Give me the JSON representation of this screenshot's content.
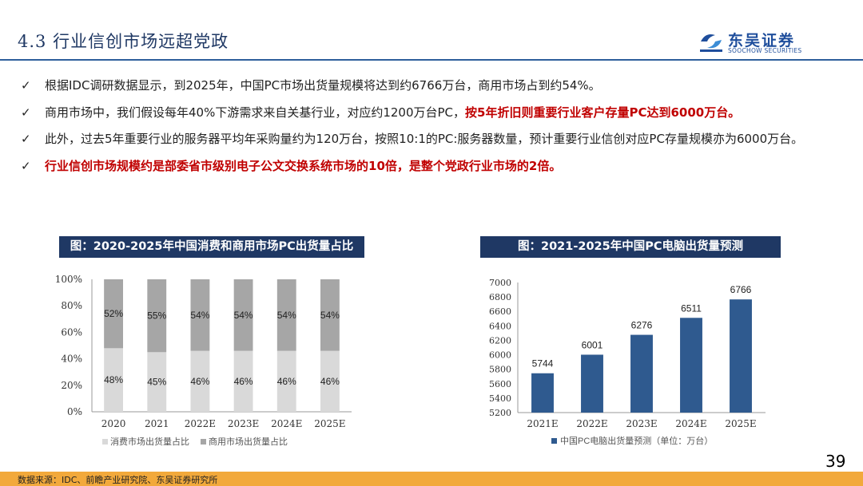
{
  "header": {
    "title": "4.3 行业信创市场远超党政",
    "logo_text": "东吴证券",
    "logo_sub": "SOOCHOW SECURITIES"
  },
  "bullets": [
    {
      "check": "✓",
      "parts": [
        {
          "text": "根据IDC调研数据显示，到2025年，中国PC市场出货量规模将达到约6766万台，商用市场占到约54%。",
          "style": "normal"
        }
      ]
    },
    {
      "check": "✓",
      "parts": [
        {
          "text": "商用市场中，我们假设每年40%下游需求来自关基行业，对应约1200万台PC，",
          "style": "normal"
        },
        {
          "text": "按5年折旧则重要行业客户存量PC达到6000万台。",
          "style": "red"
        }
      ]
    },
    {
      "check": "✓",
      "parts": [
        {
          "text": "此外，过去5年重要行业的服务器平均年采购量约为120万台，按照10:1的PC:服务器数量，预计重要行业信创对应PC存量规模亦为6000万台。",
          "style": "normal"
        }
      ]
    },
    {
      "check": "✓",
      "check_red": true,
      "parts": [
        {
          "text": "行业信创市场规模约是部委省市级别电子公文交换系统市场的10倍，是整个党政行业市场的2倍。",
          "style": "red"
        }
      ]
    }
  ],
  "chart1_title": "图：2020-2025年中国消费和商用市场PC出货量占比",
  "chart2_title": "图：2021-2025年中国PC电脑出货量预测",
  "chart_data": [
    {
      "type": "bar",
      "stacked": true,
      "categories": [
        "2020",
        "2021",
        "2022E",
        "2023E",
        "2024E",
        "2025E"
      ],
      "series": [
        {
          "name": "消费市场出货量占比",
          "values": [
            48,
            45,
            46,
            46,
            46,
            46
          ],
          "labels": [
            "48%",
            "45%",
            "46%",
            "46%",
            "46%",
            "46%"
          ],
          "color": "#d9d9d9"
        },
        {
          "name": "商用市场出货量占比",
          "values": [
            52,
            55,
            54,
            54,
            54,
            54
          ],
          "labels": [
            "52%",
            "55%",
            "54%",
            "54%",
            "54%",
            "54%"
          ],
          "color": "#a6a6a6"
        }
      ],
      "ylim": [
        0,
        100
      ],
      "yticks": [
        "0%",
        "20%",
        "40%",
        "60%",
        "80%",
        "100%"
      ],
      "legend": "bottom"
    },
    {
      "type": "bar",
      "categories": [
        "2021E",
        "2022E",
        "2023E",
        "2024E",
        "2025E"
      ],
      "series": [
        {
          "name": "中国PC电脑出货量预测（单位：万台）",
          "values": [
            5744,
            6001,
            6276,
            6511,
            6766
          ],
          "color": "#2f5a8f"
        }
      ],
      "ylim": [
        5200,
        7000
      ],
      "yticks": [
        "5200",
        "5400",
        "5600",
        "5800",
        "6000",
        "6200",
        "6400",
        "6600",
        "6800",
        "7000"
      ],
      "legend": "bottom"
    }
  ],
  "page_number": "39",
  "footer": "数据来源：IDC、前瞻产业研究院、东吴证券研究所"
}
